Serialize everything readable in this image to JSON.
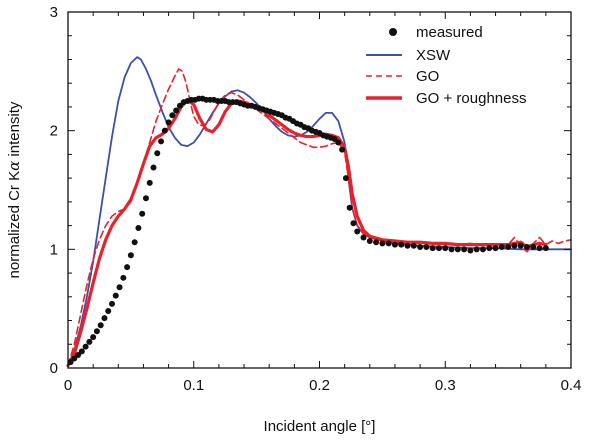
{
  "chart_data": {
    "type": "line",
    "title": "",
    "xlabel": "Incident angle [°]",
    "ylabel_main": "normalized Cr K",
    "ylabel_greek": "α",
    "ylabel_tail": " intensity",
    "xlim": [
      0,
      0.4
    ],
    "ylim": [
      0,
      3
    ],
    "x_ticks": [
      0,
      0.1,
      0.2,
      0.3,
      0.4
    ],
    "x_tick_labels": [
      "0",
      "0.1",
      "0.2",
      "0.3",
      "0.4"
    ],
    "y_ticks": [
      0,
      1,
      2,
      3
    ],
    "y_tick_labels": [
      "0",
      "1",
      "2",
      "3"
    ],
    "grid": false,
    "legend_position": "top-right",
    "series": [
      {
        "name": "measured",
        "style": "markers",
        "color": "#111111",
        "x": [
          0.002,
          0.005,
          0.008,
          0.011,
          0.014,
          0.017,
          0.02,
          0.023,
          0.026,
          0.029,
          0.032,
          0.035,
          0.038,
          0.041,
          0.044,
          0.047,
          0.05,
          0.053,
          0.056,
          0.059,
          0.062,
          0.065,
          0.068,
          0.071,
          0.074,
          0.077,
          0.08,
          0.083,
          0.086,
          0.089,
          0.092,
          0.095,
          0.098,
          0.101,
          0.104,
          0.107,
          0.11,
          0.113,
          0.116,
          0.119,
          0.122,
          0.125,
          0.128,
          0.131,
          0.134,
          0.137,
          0.14,
          0.143,
          0.146,
          0.149,
          0.152,
          0.155,
          0.158,
          0.161,
          0.164,
          0.167,
          0.17,
          0.173,
          0.176,
          0.179,
          0.182,
          0.185,
          0.188,
          0.191,
          0.194,
          0.197,
          0.2,
          0.203,
          0.206,
          0.209,
          0.212,
          0.215,
          0.218,
          0.221,
          0.224,
          0.227,
          0.23,
          0.235,
          0.24,
          0.245,
          0.25,
          0.255,
          0.26,
          0.265,
          0.27,
          0.275,
          0.28,
          0.285,
          0.29,
          0.295,
          0.3,
          0.305,
          0.31,
          0.315,
          0.32,
          0.325,
          0.33,
          0.335,
          0.34,
          0.345,
          0.35,
          0.355,
          0.36,
          0.365,
          0.37,
          0.375,
          0.38
        ],
        "y": [
          0.05,
          0.08,
          0.11,
          0.14,
          0.18,
          0.22,
          0.26,
          0.31,
          0.36,
          0.42,
          0.48,
          0.54,
          0.61,
          0.68,
          0.76,
          0.85,
          0.95,
          1.06,
          1.18,
          1.3,
          1.43,
          1.56,
          1.69,
          1.81,
          1.91,
          2.0,
          2.07,
          2.13,
          2.17,
          2.21,
          2.24,
          2.25,
          2.26,
          2.26,
          2.27,
          2.27,
          2.26,
          2.26,
          2.26,
          2.25,
          2.25,
          2.25,
          2.24,
          2.24,
          2.24,
          2.23,
          2.22,
          2.21,
          2.21,
          2.2,
          2.19,
          2.18,
          2.17,
          2.16,
          2.15,
          2.14,
          2.13,
          2.11,
          2.1,
          2.08,
          2.06,
          2.05,
          2.03,
          2.02,
          2.0,
          1.99,
          1.98,
          1.96,
          1.95,
          1.94,
          1.93,
          1.9,
          1.84,
          1.6,
          1.35,
          1.22,
          1.15,
          1.1,
          1.07,
          1.06,
          1.05,
          1.05,
          1.04,
          1.04,
          1.03,
          1.03,
          1.02,
          1.02,
          1.01,
          1.01,
          1.01,
          1.0,
          1.0,
          1.0,
          0.99,
          1.0,
          1.0,
          1.01,
          1.01,
          1.02,
          1.02,
          1.03,
          1.03,
          1.02,
          1.02,
          1.01,
          1.01
        ]
      },
      {
        "name": "XSW",
        "style": "line",
        "color": "#3b50a8",
        "x": [
          0,
          0.005,
          0.01,
          0.015,
          0.02,
          0.025,
          0.03,
          0.035,
          0.04,
          0.045,
          0.05,
          0.055,
          0.058,
          0.062,
          0.066,
          0.07,
          0.075,
          0.08,
          0.085,
          0.09,
          0.095,
          0.1,
          0.105,
          0.11,
          0.115,
          0.12,
          0.125,
          0.13,
          0.135,
          0.14,
          0.145,
          0.15,
          0.155,
          0.16,
          0.165,
          0.17,
          0.175,
          0.18,
          0.185,
          0.19,
          0.195,
          0.2,
          0.205,
          0.21,
          0.215,
          0.22,
          0.223,
          0.226,
          0.23,
          0.235,
          0.24,
          0.25,
          0.26,
          0.27,
          0.28,
          0.3,
          0.32,
          0.34,
          0.36,
          0.38,
          0.4
        ],
        "y": [
          0.02,
          0.15,
          0.35,
          0.6,
          0.9,
          1.25,
          1.6,
          1.95,
          2.25,
          2.45,
          2.57,
          2.62,
          2.6,
          2.52,
          2.42,
          2.3,
          2.16,
          2.03,
          1.94,
          1.88,
          1.87,
          1.9,
          1.97,
          2.06,
          2.15,
          2.23,
          2.29,
          2.33,
          2.34,
          2.32,
          2.28,
          2.23,
          2.17,
          2.1,
          2.04,
          1.99,
          1.96,
          1.95,
          1.96,
          1.99,
          2.04,
          2.1,
          2.15,
          2.15,
          2.08,
          1.9,
          1.6,
          1.35,
          1.2,
          1.13,
          1.1,
          1.07,
          1.05,
          1.04,
          1.03,
          1.02,
          1.01,
          1.01,
          1.0,
          1.0,
          1.0
        ]
      },
      {
        "name": "GO",
        "style": "dashed",
        "color": "#e8222a",
        "x": [
          0,
          0.005,
          0.01,
          0.015,
          0.02,
          0.025,
          0.03,
          0.035,
          0.04,
          0.045,
          0.05,
          0.055,
          0.06,
          0.065,
          0.07,
          0.075,
          0.08,
          0.085,
          0.088,
          0.091,
          0.094,
          0.097,
          0.1,
          0.104,
          0.108,
          0.112,
          0.116,
          0.12,
          0.125,
          0.13,
          0.135,
          0.14,
          0.145,
          0.15,
          0.155,
          0.16,
          0.165,
          0.17,
          0.175,
          0.18,
          0.185,
          0.19,
          0.195,
          0.2,
          0.205,
          0.21,
          0.215,
          0.22,
          0.223,
          0.226,
          0.23,
          0.235,
          0.24,
          0.25,
          0.26,
          0.27,
          0.28,
          0.29,
          0.3,
          0.31,
          0.32,
          0.33,
          0.34,
          0.35,
          0.355,
          0.36,
          0.365,
          0.37,
          0.375,
          0.38,
          0.385,
          0.39,
          0.395,
          0.4
        ],
        "y": [
          0.02,
          0.2,
          0.45,
          0.7,
          0.92,
          1.08,
          1.2,
          1.28,
          1.32,
          1.34,
          1.4,
          1.55,
          1.72,
          1.9,
          2.08,
          2.22,
          2.35,
          2.46,
          2.52,
          2.5,
          2.4,
          2.25,
          2.12,
          2.05,
          2.04,
          2.08,
          2.16,
          2.24,
          2.3,
          2.32,
          2.3,
          2.26,
          2.22,
          2.18,
          2.14,
          2.1,
          2.06,
          2.02,
          1.98,
          1.94,
          1.9,
          1.88,
          1.86,
          1.86,
          1.87,
          1.89,
          1.9,
          1.82,
          1.6,
          1.35,
          1.2,
          1.13,
          1.1,
          1.08,
          1.07,
          1.06,
          1.05,
          1.05,
          1.04,
          1.04,
          1.05,
          1.04,
          1.03,
          1.04,
          1.1,
          1.03,
          0.98,
          1.05,
          1.1,
          1.04,
          1.07,
          1.05,
          1.07,
          1.08
        ]
      },
      {
        "name": "GO + roughness",
        "style": "thick",
        "color": "#e8222a",
        "x": [
          0,
          0.005,
          0.01,
          0.015,
          0.02,
          0.025,
          0.03,
          0.035,
          0.04,
          0.045,
          0.05,
          0.055,
          0.06,
          0.065,
          0.07,
          0.075,
          0.08,
          0.085,
          0.09,
          0.095,
          0.1,
          0.105,
          0.11,
          0.115,
          0.12,
          0.125,
          0.13,
          0.135,
          0.14,
          0.145,
          0.15,
          0.155,
          0.16,
          0.165,
          0.17,
          0.175,
          0.18,
          0.185,
          0.19,
          0.195,
          0.2,
          0.205,
          0.21,
          0.215,
          0.22,
          0.223,
          0.226,
          0.23,
          0.235,
          0.24,
          0.25,
          0.26,
          0.27,
          0.28,
          0.29,
          0.3,
          0.31,
          0.32,
          0.33,
          0.34,
          0.35,
          0.355,
          0.36,
          0.365,
          0.37,
          0.375,
          0.38
        ],
        "y": [
          0.02,
          0.12,
          0.3,
          0.5,
          0.72,
          0.92,
          1.08,
          1.2,
          1.28,
          1.34,
          1.42,
          1.56,
          1.72,
          1.87,
          1.94,
          1.97,
          2.02,
          2.1,
          2.2,
          2.26,
          2.22,
          2.1,
          2.01,
          1.99,
          2.05,
          2.16,
          2.23,
          2.25,
          2.24,
          2.22,
          2.2,
          2.17,
          2.13,
          2.09,
          2.05,
          2.01,
          1.98,
          1.96,
          1.95,
          1.95,
          1.96,
          1.97,
          1.96,
          1.94,
          1.86,
          1.7,
          1.47,
          1.28,
          1.16,
          1.11,
          1.08,
          1.07,
          1.06,
          1.06,
          1.05,
          1.05,
          1.04,
          1.04,
          1.04,
          1.04,
          1.04,
          1.05,
          1.06,
          1.02,
          1.04,
          1.05,
          1.04
        ]
      }
    ]
  }
}
